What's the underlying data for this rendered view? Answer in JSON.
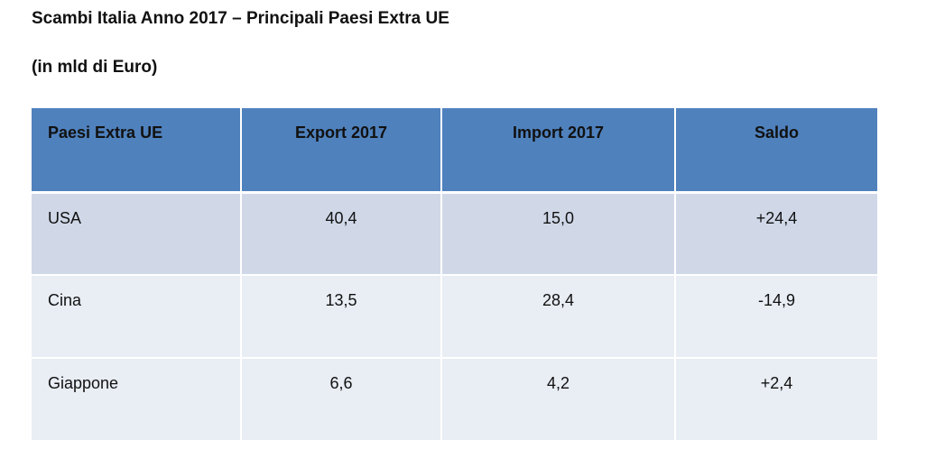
{
  "document": {
    "title": "Scambi Italia Anno 2017 – Principali Paesi Extra UE",
    "subtitle": "(in mld di Euro)"
  },
  "table": {
    "headers": [
      "Paesi Extra UE",
      "Export 2017",
      "Import 2017",
      "Saldo"
    ],
    "rows": [
      [
        "USA",
        "40,4",
        "15,0",
        "+24,4"
      ],
      [
        "Cina",
        "13,5",
        "28,4",
        "-14,9"
      ],
      [
        "Giappone",
        "6,6",
        "4,2",
        "+2,4"
      ]
    ]
  },
  "colors": {
    "header_bg": "#4f81bd",
    "row_dark": "#d0d8e8",
    "row_light": "#e9edf4"
  }
}
